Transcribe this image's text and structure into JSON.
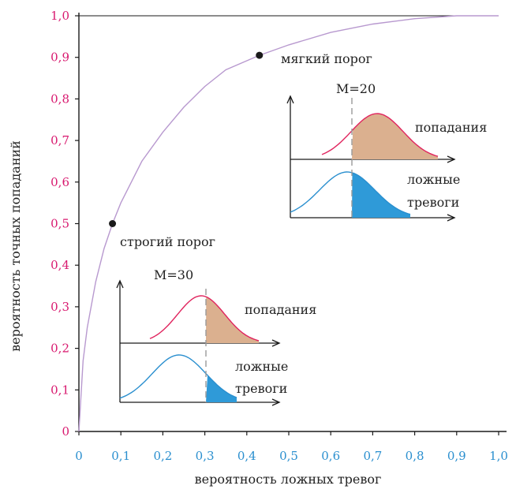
{
  "colors": {
    "y_tick": "#d8196f",
    "x_tick": "#2a8fcf",
    "roc_curve": "#b899cf",
    "axis": "#1a1a1a",
    "hits_curve": "#e0245e",
    "hits_fill": "#dbb08f",
    "false_curve": "#2a8fcf",
    "false_fill": "#2f9ad8",
    "threshold_line": "#9a9a9a",
    "point": "#1a1a1a"
  },
  "chart_data": {
    "type": "line",
    "xlabel": "вероятность ложных тревог",
    "ylabel": "вероятность точных попаданий",
    "xlim": [
      0,
      1
    ],
    "ylim": [
      0,
      1
    ],
    "x_ticks": [
      "0",
      "0,1",
      "0,2",
      "0,3",
      "0,4",
      "0,5",
      "0,6",
      "0,7",
      "0,8",
      "0,9",
      "1,0"
    ],
    "y_ticks": [
      "0",
      "0,1",
      "0,2",
      "0,3",
      "0,4",
      "0,5",
      "0,6",
      "0,7",
      "0,8",
      "0,9",
      "1,0"
    ],
    "grid": false,
    "series": [
      {
        "x": [
          0,
          0.01,
          0.02,
          0.04,
          0.06,
          0.08,
          0.1,
          0.15,
          0.2,
          0.25,
          0.3,
          0.35,
          0.43,
          0.5,
          0.6,
          0.7,
          0.8,
          0.9,
          1.0
        ],
        "y": [
          0,
          0.17,
          0.25,
          0.36,
          0.44,
          0.5,
          0.55,
          0.65,
          0.72,
          0.78,
          0.83,
          0.87,
          0.905,
          0.93,
          0.96,
          0.98,
          0.993,
          1.0,
          1.0
        ]
      }
    ],
    "points": [
      {
        "label": "строгий порог",
        "x": 0.08,
        "y": 0.5
      },
      {
        "label": "мягкий порог",
        "x": 0.43,
        "y": 0.905
      }
    ],
    "insets": [
      {
        "threshold_label": "M=30",
        "hits_label": "попадания",
        "false_label_1": "ложные",
        "false_label_2": "тревоги"
      },
      {
        "threshold_label": "M=20",
        "hits_label": "попадания",
        "false_label_1": "ложные",
        "false_label_2": "тревоги"
      }
    ]
  }
}
